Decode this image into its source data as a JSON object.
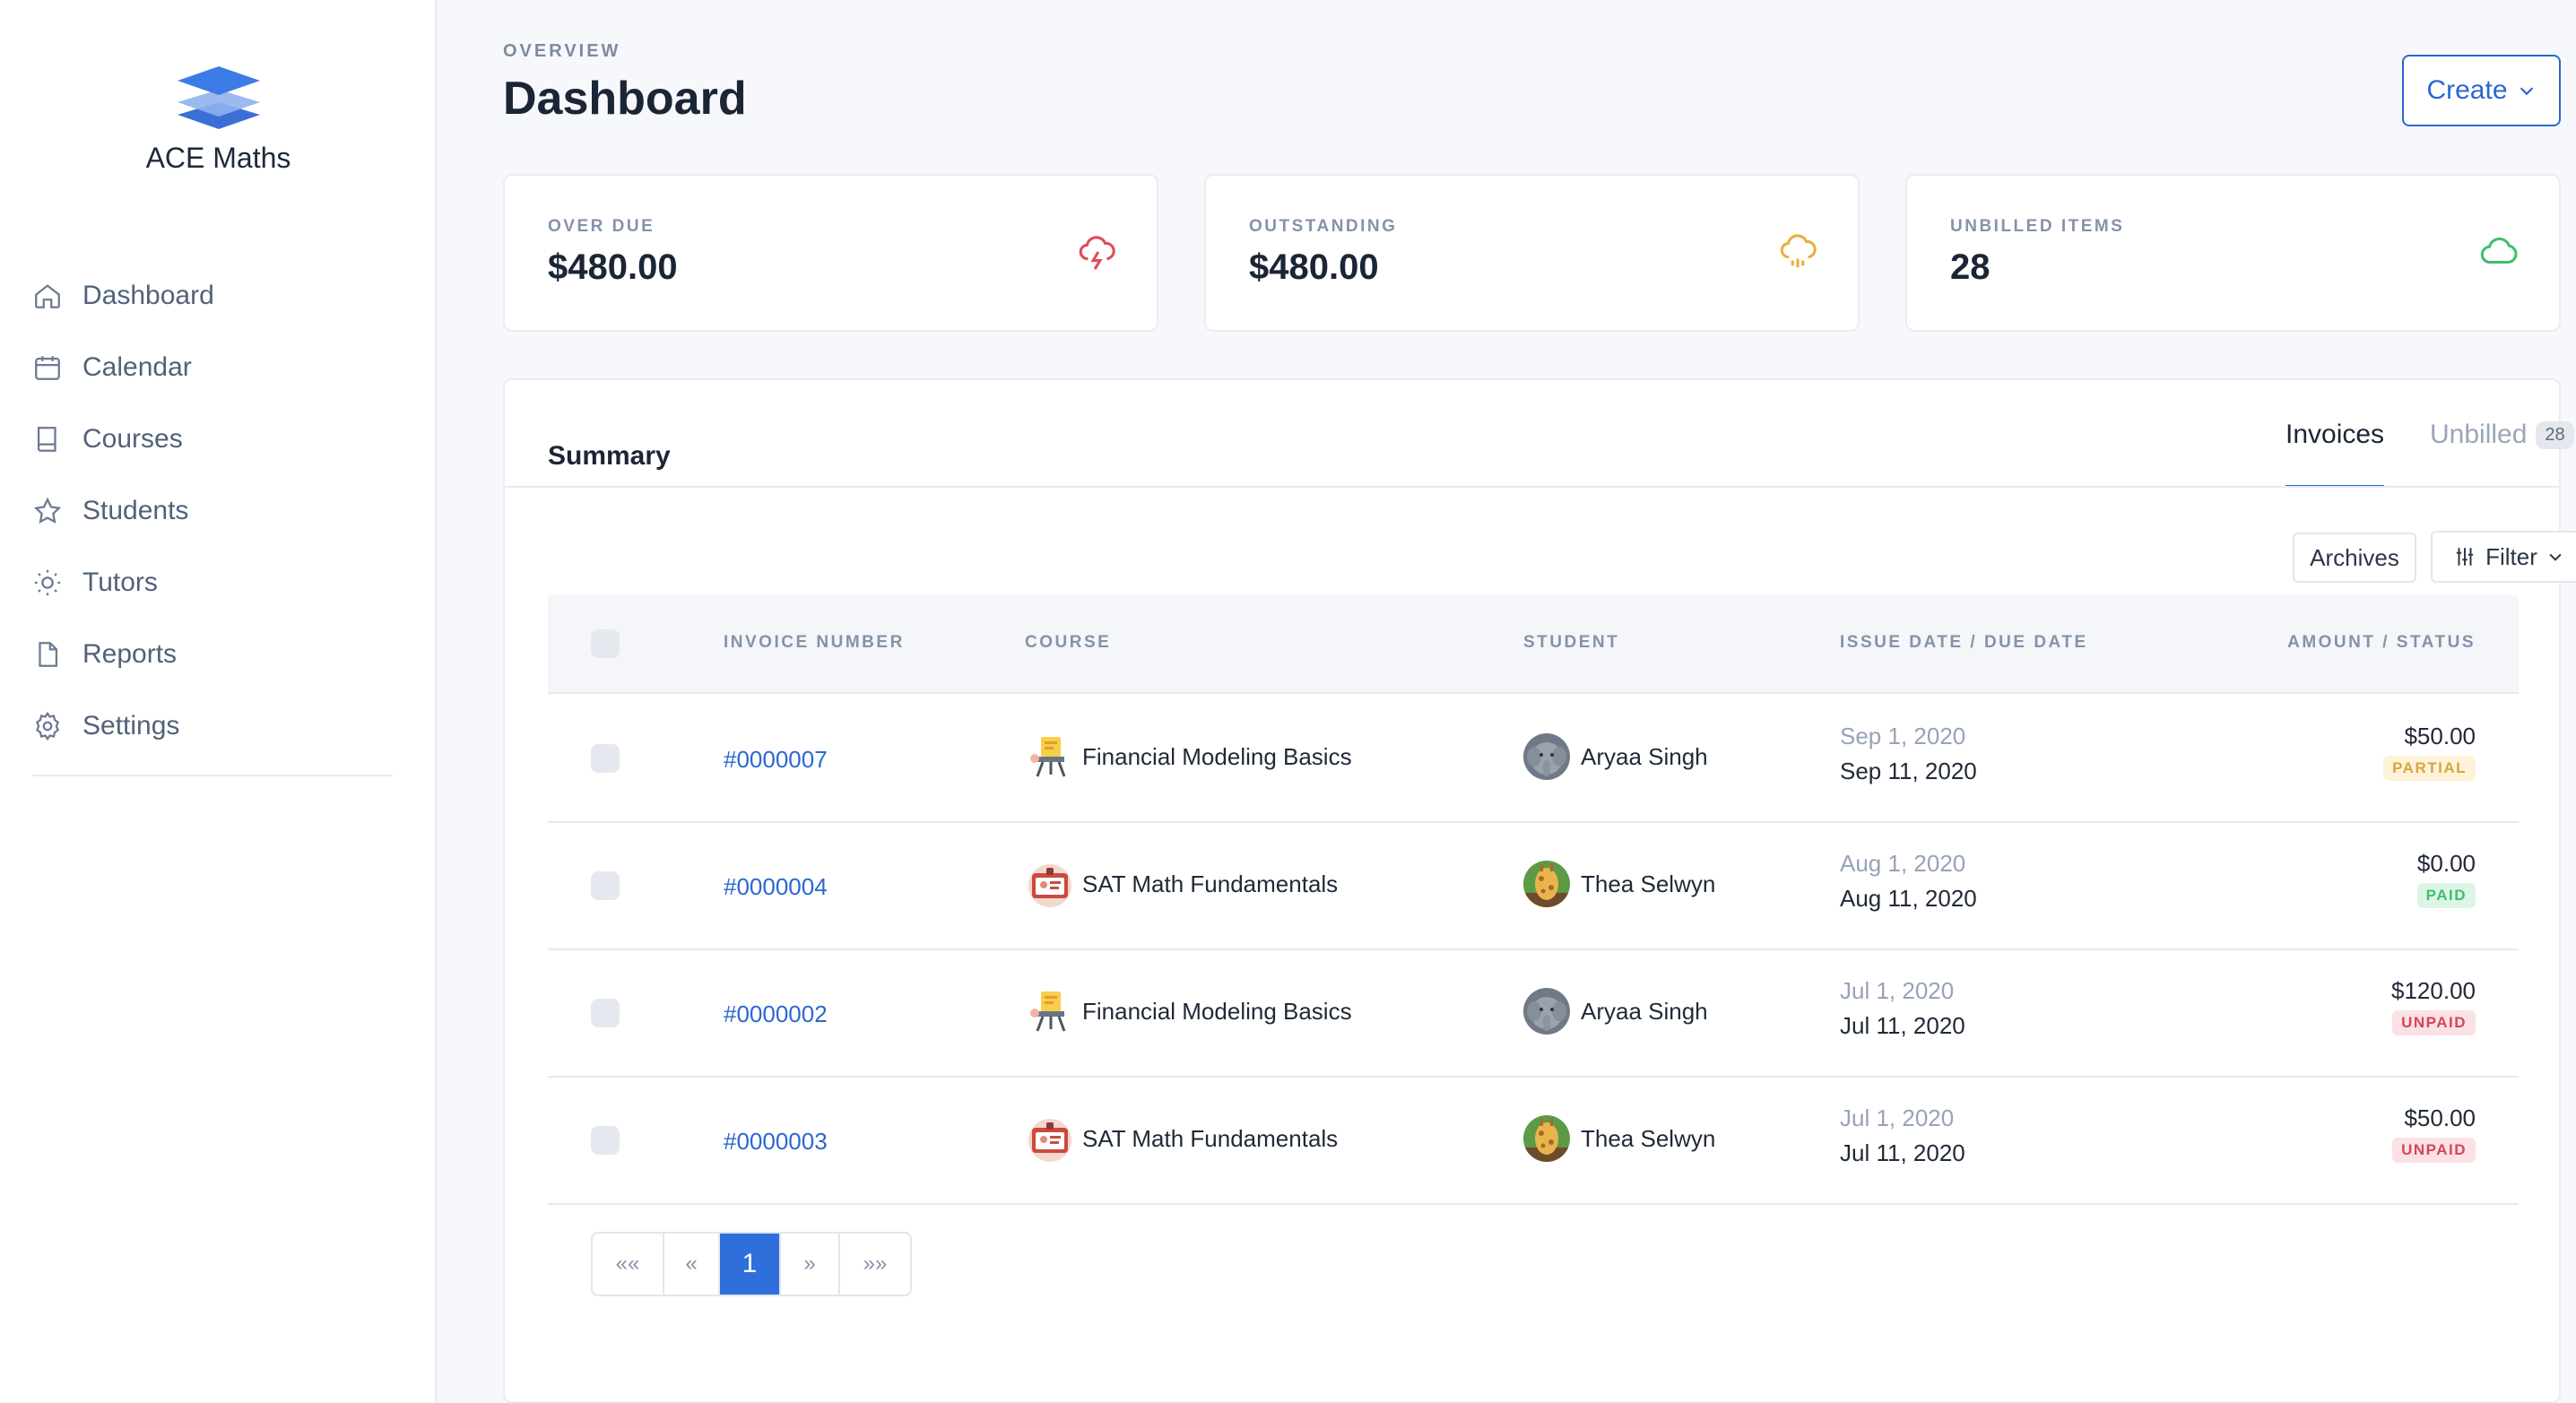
{
  "app": {
    "name": "ACE Maths",
    "logo_icon": "stacked-layers-logo",
    "accent_color": "#2b67d1"
  },
  "sidebar": {
    "items": [
      {
        "label": "Dashboard",
        "icon": "home-icon"
      },
      {
        "label": "Calendar",
        "icon": "calendar-icon"
      },
      {
        "label": "Courses",
        "icon": "book-icon"
      },
      {
        "label": "Students",
        "icon": "star-icon"
      },
      {
        "label": "Tutors",
        "icon": "sun-icon"
      },
      {
        "label": "Reports",
        "icon": "document-icon"
      },
      {
        "label": "Settings",
        "icon": "gear-icon"
      }
    ]
  },
  "header": {
    "eyebrow": "OVERVIEW",
    "title": "Dashboard",
    "create_label": "Create"
  },
  "stats": [
    {
      "label": "OVER DUE",
      "value": "$480.00",
      "icon": "thunderstorm-icon",
      "color": "#e04a5a"
    },
    {
      "label": "OUTSTANDING",
      "value": "$480.00",
      "icon": "rain-cloud-icon",
      "color": "#e6b13b"
    },
    {
      "label": "UNBILLED ITEMS",
      "value": "28",
      "icon": "cloud-icon",
      "color": "#3fbf6e"
    }
  ],
  "summary": {
    "title": "Summary",
    "tabs": {
      "invoices": "Invoices",
      "unbilled": "Unbilled",
      "unbilled_count": "28"
    },
    "archives_label": "Archives",
    "filter_label": "Filter",
    "columns": {
      "invoice_number": "INVOICE NUMBER",
      "course": "COURSE",
      "student": "STUDENT",
      "dates": "ISSUE DATE / DUE DATE",
      "amount": "AMOUNT / STATUS"
    },
    "rows": [
      {
        "invoice": "#0000007",
        "course": "Financial Modeling Basics",
        "course_icon": "easel-icon",
        "student": "Aryaa Singh",
        "avatar": "elephant-avatar",
        "issue": "Sep 1, 2020",
        "due": "Sep 11, 2020",
        "amount": "$50.00",
        "status": "PARTIAL"
      },
      {
        "invoice": "#0000004",
        "course": "SAT Math Fundamentals",
        "course_icon": "id-card-icon",
        "student": "Thea Selwyn",
        "avatar": "giraffe-avatar",
        "issue": "Aug 1, 2020",
        "due": "Aug 11, 2020",
        "amount": "$0.00",
        "status": "PAID"
      },
      {
        "invoice": "#0000002",
        "course": "Financial Modeling Basics",
        "course_icon": "easel-icon",
        "student": "Aryaa Singh",
        "avatar": "elephant-avatar",
        "issue": "Jul 1, 2020",
        "due": "Jul 11, 2020",
        "amount": "$120.00",
        "status": "UNPAID"
      },
      {
        "invoice": "#0000003",
        "course": "SAT Math Fundamentals",
        "course_icon": "id-card-icon",
        "student": "Thea Selwyn",
        "avatar": "giraffe-avatar",
        "issue": "Jul 1, 2020",
        "due": "Jul 11, 2020",
        "amount": "$50.00",
        "status": "UNPAID"
      }
    ],
    "pagination": {
      "first": "««",
      "prev": "«",
      "current": "1",
      "next": "»",
      "last": "»»"
    }
  }
}
